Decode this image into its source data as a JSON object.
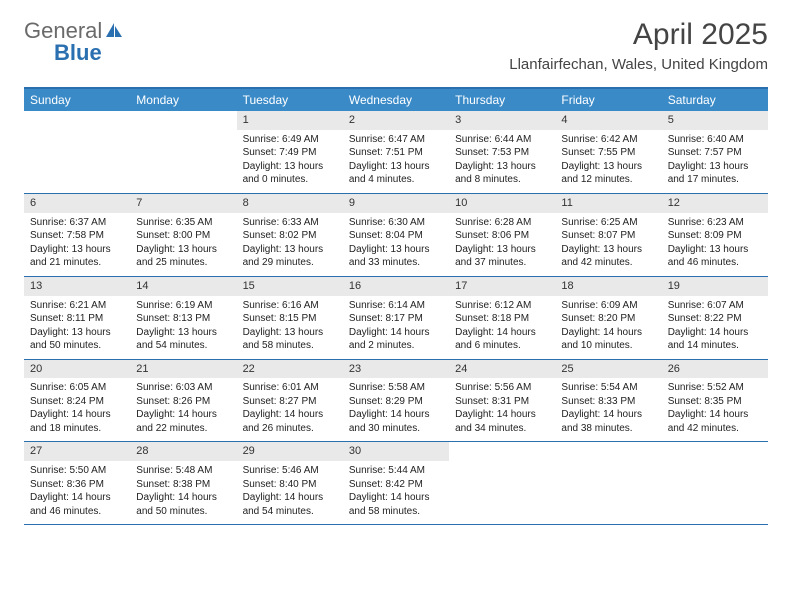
{
  "logo": {
    "text1": "General",
    "text2": "Blue"
  },
  "title": "April 2025",
  "location": "Llanfairfechan, Wales, United Kingdom",
  "colors": {
    "header_bg": "#3a8ac8",
    "border": "#2a6fb0",
    "daynum_bg": "#e9e9e9",
    "text": "#222222",
    "title_text": "#444444"
  },
  "weekdays": [
    "Sunday",
    "Monday",
    "Tuesday",
    "Wednesday",
    "Thursday",
    "Friday",
    "Saturday"
  ],
  "weeks": [
    [
      {
        "n": "",
        "lines": []
      },
      {
        "n": "",
        "lines": []
      },
      {
        "n": "1",
        "lines": [
          "Sunrise: 6:49 AM",
          "Sunset: 7:49 PM",
          "Daylight: 13 hours",
          "and 0 minutes."
        ]
      },
      {
        "n": "2",
        "lines": [
          "Sunrise: 6:47 AM",
          "Sunset: 7:51 PM",
          "Daylight: 13 hours",
          "and 4 minutes."
        ]
      },
      {
        "n": "3",
        "lines": [
          "Sunrise: 6:44 AM",
          "Sunset: 7:53 PM",
          "Daylight: 13 hours",
          "and 8 minutes."
        ]
      },
      {
        "n": "4",
        "lines": [
          "Sunrise: 6:42 AM",
          "Sunset: 7:55 PM",
          "Daylight: 13 hours",
          "and 12 minutes."
        ]
      },
      {
        "n": "5",
        "lines": [
          "Sunrise: 6:40 AM",
          "Sunset: 7:57 PM",
          "Daylight: 13 hours",
          "and 17 minutes."
        ]
      }
    ],
    [
      {
        "n": "6",
        "lines": [
          "Sunrise: 6:37 AM",
          "Sunset: 7:58 PM",
          "Daylight: 13 hours",
          "and 21 minutes."
        ]
      },
      {
        "n": "7",
        "lines": [
          "Sunrise: 6:35 AM",
          "Sunset: 8:00 PM",
          "Daylight: 13 hours",
          "and 25 minutes."
        ]
      },
      {
        "n": "8",
        "lines": [
          "Sunrise: 6:33 AM",
          "Sunset: 8:02 PM",
          "Daylight: 13 hours",
          "and 29 minutes."
        ]
      },
      {
        "n": "9",
        "lines": [
          "Sunrise: 6:30 AM",
          "Sunset: 8:04 PM",
          "Daylight: 13 hours",
          "and 33 minutes."
        ]
      },
      {
        "n": "10",
        "lines": [
          "Sunrise: 6:28 AM",
          "Sunset: 8:06 PM",
          "Daylight: 13 hours",
          "and 37 minutes."
        ]
      },
      {
        "n": "11",
        "lines": [
          "Sunrise: 6:25 AM",
          "Sunset: 8:07 PM",
          "Daylight: 13 hours",
          "and 42 minutes."
        ]
      },
      {
        "n": "12",
        "lines": [
          "Sunrise: 6:23 AM",
          "Sunset: 8:09 PM",
          "Daylight: 13 hours",
          "and 46 minutes."
        ]
      }
    ],
    [
      {
        "n": "13",
        "lines": [
          "Sunrise: 6:21 AM",
          "Sunset: 8:11 PM",
          "Daylight: 13 hours",
          "and 50 minutes."
        ]
      },
      {
        "n": "14",
        "lines": [
          "Sunrise: 6:19 AM",
          "Sunset: 8:13 PM",
          "Daylight: 13 hours",
          "and 54 minutes."
        ]
      },
      {
        "n": "15",
        "lines": [
          "Sunrise: 6:16 AM",
          "Sunset: 8:15 PM",
          "Daylight: 13 hours",
          "and 58 minutes."
        ]
      },
      {
        "n": "16",
        "lines": [
          "Sunrise: 6:14 AM",
          "Sunset: 8:17 PM",
          "Daylight: 14 hours",
          "and 2 minutes."
        ]
      },
      {
        "n": "17",
        "lines": [
          "Sunrise: 6:12 AM",
          "Sunset: 8:18 PM",
          "Daylight: 14 hours",
          "and 6 minutes."
        ]
      },
      {
        "n": "18",
        "lines": [
          "Sunrise: 6:09 AM",
          "Sunset: 8:20 PM",
          "Daylight: 14 hours",
          "and 10 minutes."
        ]
      },
      {
        "n": "19",
        "lines": [
          "Sunrise: 6:07 AM",
          "Sunset: 8:22 PM",
          "Daylight: 14 hours",
          "and 14 minutes."
        ]
      }
    ],
    [
      {
        "n": "20",
        "lines": [
          "Sunrise: 6:05 AM",
          "Sunset: 8:24 PM",
          "Daylight: 14 hours",
          "and 18 minutes."
        ]
      },
      {
        "n": "21",
        "lines": [
          "Sunrise: 6:03 AM",
          "Sunset: 8:26 PM",
          "Daylight: 14 hours",
          "and 22 minutes."
        ]
      },
      {
        "n": "22",
        "lines": [
          "Sunrise: 6:01 AM",
          "Sunset: 8:27 PM",
          "Daylight: 14 hours",
          "and 26 minutes."
        ]
      },
      {
        "n": "23",
        "lines": [
          "Sunrise: 5:58 AM",
          "Sunset: 8:29 PM",
          "Daylight: 14 hours",
          "and 30 minutes."
        ]
      },
      {
        "n": "24",
        "lines": [
          "Sunrise: 5:56 AM",
          "Sunset: 8:31 PM",
          "Daylight: 14 hours",
          "and 34 minutes."
        ]
      },
      {
        "n": "25",
        "lines": [
          "Sunrise: 5:54 AM",
          "Sunset: 8:33 PM",
          "Daylight: 14 hours",
          "and 38 minutes."
        ]
      },
      {
        "n": "26",
        "lines": [
          "Sunrise: 5:52 AM",
          "Sunset: 8:35 PM",
          "Daylight: 14 hours",
          "and 42 minutes."
        ]
      }
    ],
    [
      {
        "n": "27",
        "lines": [
          "Sunrise: 5:50 AM",
          "Sunset: 8:36 PM",
          "Daylight: 14 hours",
          "and 46 minutes."
        ]
      },
      {
        "n": "28",
        "lines": [
          "Sunrise: 5:48 AM",
          "Sunset: 8:38 PM",
          "Daylight: 14 hours",
          "and 50 minutes."
        ]
      },
      {
        "n": "29",
        "lines": [
          "Sunrise: 5:46 AM",
          "Sunset: 8:40 PM",
          "Daylight: 14 hours",
          "and 54 minutes."
        ]
      },
      {
        "n": "30",
        "lines": [
          "Sunrise: 5:44 AM",
          "Sunset: 8:42 PM",
          "Daylight: 14 hours",
          "and 58 minutes."
        ]
      },
      {
        "n": "",
        "lines": []
      },
      {
        "n": "",
        "lines": []
      },
      {
        "n": "",
        "lines": []
      }
    ]
  ]
}
